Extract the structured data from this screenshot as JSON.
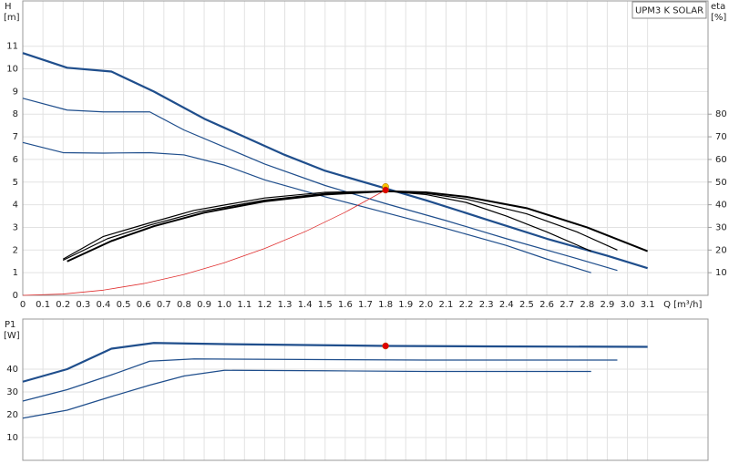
{
  "chart_data": [
    {
      "type": "line",
      "title": "UPM3 K SOLAR",
      "y_label": "H",
      "y_unit": "[m]",
      "y2_label": "eta",
      "y2_unit": "[%]",
      "x_label": "Q [m³/h]",
      "xlim": [
        0,
        3.4
      ],
      "ylim": [
        0,
        13
      ],
      "y2lim": [
        0,
        130
      ],
      "grid": true,
      "xticks": [
        0,
        0.1,
        0.2,
        0.3,
        0.4,
        0.5,
        0.6,
        0.7,
        0.8,
        0.9,
        {
          "value": 1,
          "label": "1.0"
        },
        1.1,
        1.2,
        1.3,
        1.4,
        1.5,
        1.6,
        1.7,
        1.8,
        1.9,
        {
          "value": 2,
          "label": "2.0"
        },
        2.1,
        2.2,
        2.3,
        2.4,
        2.5,
        2.6,
        2.7,
        2.8,
        2.9,
        {
          "value": 3,
          "label": "3.0"
        },
        3.1
      ],
      "yticks": [
        0,
        1,
        2,
        3,
        4,
        5,
        6,
        7,
        8,
        9,
        10,
        11
      ],
      "y2ticks": [
        10,
        20,
        30,
        40,
        50,
        60,
        70,
        80
      ],
      "series": [
        {
          "color": "#1f4e8c",
          "width": 2.2,
          "x": [
            0,
            0.22,
            0.44,
            0.65,
            0.9,
            1.1,
            1.3,
            1.5,
            1.8,
            2.0,
            2.3,
            2.6,
            2.9,
            3.1
          ],
          "values": [
            10.7,
            10.05,
            9.88,
            9.0,
            7.8,
            7.0,
            6.2,
            5.5,
            4.72,
            4.2,
            3.35,
            2.5,
            1.75,
            1.2
          ]
        },
        {
          "color": "#1f4e8c",
          "width": 1.2,
          "x": [
            0,
            0.22,
            0.4,
            0.63,
            0.8,
            1.0,
            1.2,
            1.5,
            1.8,
            2.1,
            2.4,
            2.7,
            2.95
          ],
          "values": [
            8.7,
            8.18,
            8.1,
            8.1,
            7.3,
            6.55,
            5.8,
            4.85,
            4.05,
            3.3,
            2.5,
            1.75,
            1.1
          ]
        },
        {
          "color": "#1f4e8c",
          "width": 1.2,
          "x": [
            0,
            0.2,
            0.4,
            0.63,
            0.8,
            1.0,
            1.2,
            1.5,
            1.8,
            2.1,
            2.4,
            2.6,
            2.82
          ],
          "values": [
            6.75,
            6.3,
            6.28,
            6.3,
            6.2,
            5.75,
            5.1,
            4.35,
            3.65,
            2.95,
            2.2,
            1.6,
            1.0
          ]
        },
        {
          "color": "#000000",
          "width": 2,
          "axis": "y2",
          "x": [
            0.22,
            0.44,
            0.65,
            0.9,
            1.2,
            1.5,
            1.8,
            2.0,
            2.2,
            2.5,
            2.8,
            3.1
          ],
          "values": [
            15,
            24,
            30.5,
            36.5,
            41.5,
            44.5,
            46,
            45.5,
            43.5,
            38.5,
            30,
            19.5
          ]
        },
        {
          "color": "#000000",
          "width": 1.2,
          "axis": "y2",
          "x": [
            0.2,
            0.42,
            0.63,
            0.88,
            1.2,
            1.5,
            1.8,
            2.0,
            2.2,
            2.5,
            2.75,
            2.95
          ],
          "values": [
            15.5,
            25,
            31,
            37,
            42,
            45,
            46,
            45,
            42.5,
            36,
            28,
            20
          ]
        },
        {
          "color": "#000000",
          "width": 1.2,
          "axis": "y2",
          "x": [
            0.2,
            0.4,
            0.63,
            0.85,
            1.2,
            1.5,
            1.8,
            2.0,
            2.2,
            2.4,
            2.6,
            2.82
          ],
          "values": [
            16,
            26,
            32,
            37.5,
            43,
            45.5,
            46,
            44.5,
            41,
            35,
            28,
            19.5
          ]
        },
        {
          "color": "#e03030",
          "width": 0.8,
          "x": [
            0,
            0.2,
            0.4,
            0.6,
            0.8,
            1.0,
            1.2,
            1.4,
            1.6,
            1.8
          ],
          "values": [
            0,
            0.057,
            0.23,
            0.52,
            0.92,
            1.44,
            2.07,
            2.81,
            3.67,
            4.65
          ]
        }
      ],
      "points": [
        {
          "x": 1.8,
          "y": 4.8,
          "color": "#f5c400"
        },
        {
          "x": 1.8,
          "y": 4.65,
          "color": "#e00000"
        }
      ]
    },
    {
      "type": "line",
      "y_label": "P1",
      "y_unit": "[W]",
      "xlim": [
        0,
        3.4
      ],
      "ylim": [
        0,
        62
      ],
      "grid": true,
      "xticks": [
        0,
        0.1,
        0.2,
        0.3,
        0.4,
        0.5,
        0.6,
        0.7,
        0.8,
        0.9,
        1,
        1.1,
        1.2,
        1.3,
        1.4,
        1.5,
        1.6,
        1.7,
        1.8,
        1.9,
        2,
        2.1,
        2.2,
        2.3,
        2.4,
        2.5,
        2.6,
        2.7,
        2.8,
        2.9,
        3,
        3.1
      ],
      "xtick_labels": false,
      "yticks": [
        10,
        20,
        30,
        40
      ],
      "series": [
        {
          "color": "#1f4e8c",
          "width": 2.2,
          "x": [
            0,
            0.22,
            0.44,
            0.65,
            1.0,
            1.5,
            1.8,
            2.3,
            3.1
          ],
          "values": [
            34.5,
            40,
            49,
            51.5,
            51,
            50.5,
            50.2,
            50,
            49.8
          ]
        },
        {
          "color": "#1f4e8c",
          "width": 1.2,
          "x": [
            0,
            0.22,
            0.44,
            0.63,
            0.85,
            1.5,
            2.0,
            2.95
          ],
          "values": [
            26,
            31,
            37.5,
            43.5,
            44.5,
            44.2,
            44,
            44
          ]
        },
        {
          "color": "#1f4e8c",
          "width": 1.2,
          "x": [
            0,
            0.22,
            0.44,
            0.63,
            0.8,
            1.0,
            1.5,
            2.0,
            2.82
          ],
          "values": [
            18.5,
            22,
            28,
            33,
            37,
            39.5,
            39.3,
            39,
            39
          ]
        }
      ],
      "points": [
        {
          "x": 1.8,
          "y": 50.2,
          "color": "#e00000"
        }
      ]
    }
  ]
}
